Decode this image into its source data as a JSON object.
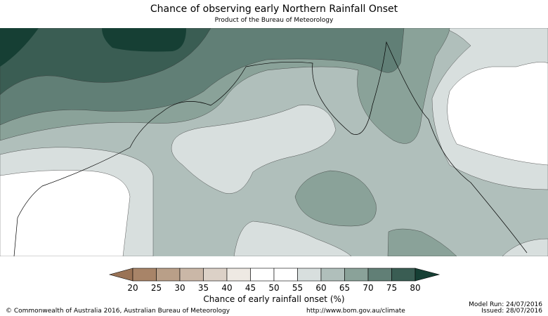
{
  "header": {
    "title": "Chance of observing early Northern Rainfall Onset",
    "subtitle": "Product of the Bureau of Meteorology"
  },
  "legend": {
    "label": "Chance of early rainfall onset (%)",
    "ticks": [
      "20",
      "25",
      "30",
      "35",
      "40",
      "45",
      "50",
      "55",
      "60",
      "65",
      "70",
      "75",
      "80"
    ],
    "colors": {
      "below_20": "#9a7356",
      "20-25": "#a88468",
      "25-30": "#b99f88",
      "30-35": "#cab7a7",
      "35-40": "#dcd1c7",
      "40-45": "#eee9e3",
      "45-50": "#ffffff",
      "50-55": "#ffffff",
      "55-60": "#d8dfde",
      "60-65": "#b0bfbb",
      "65-70": "#8aa299",
      "70-75": "#617f76",
      "75-80": "#3a5d53",
      "above_80": "#163f34"
    }
  },
  "footer": {
    "copyright": "© Commonwealth of Australia 2016, Australian Bureau of Meteorology",
    "url": "http://www.bom.gov.au/climate",
    "model_run": "Model Run: 24/07/2016",
    "issued": "Issued: 28/07/2016"
  }
}
